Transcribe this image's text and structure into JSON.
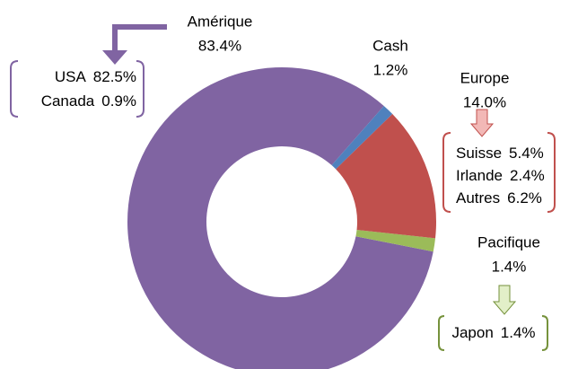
{
  "chart_data": {
    "type": "donut",
    "segments": [
      {
        "name": "Cash",
        "value": 1.2,
        "value_label": "1.2%",
        "color": "#4f81bd"
      },
      {
        "name": "Europe",
        "value": 14.0,
        "value_label": "14.0%",
        "color": "#c0504d",
        "breakdown": [
          {
            "name": "Suisse",
            "value": 5.4,
            "value_label": "5.4%"
          },
          {
            "name": "Irlande",
            "value": 2.4,
            "value_label": "2.4%"
          },
          {
            "name": "Autres",
            "value": 6.2,
            "value_label": "6.2%"
          }
        ]
      },
      {
        "name": "Pacifique",
        "value": 1.4,
        "value_label": "1.4%",
        "color": "#9bbb59",
        "breakdown": [
          {
            "name": "Japon",
            "value": 1.4,
            "value_label": "1.4%"
          }
        ]
      },
      {
        "name": "Amérique",
        "value": 83.4,
        "value_label": "83.4%",
        "color": "#8064a2",
        "breakdown": [
          {
            "name": "USA",
            "value": 82.5,
            "value_label": "82.5%"
          },
          {
            "name": "Canada",
            "value": 0.9,
            "value_label": "0.9%"
          }
        ]
      }
    ]
  }
}
